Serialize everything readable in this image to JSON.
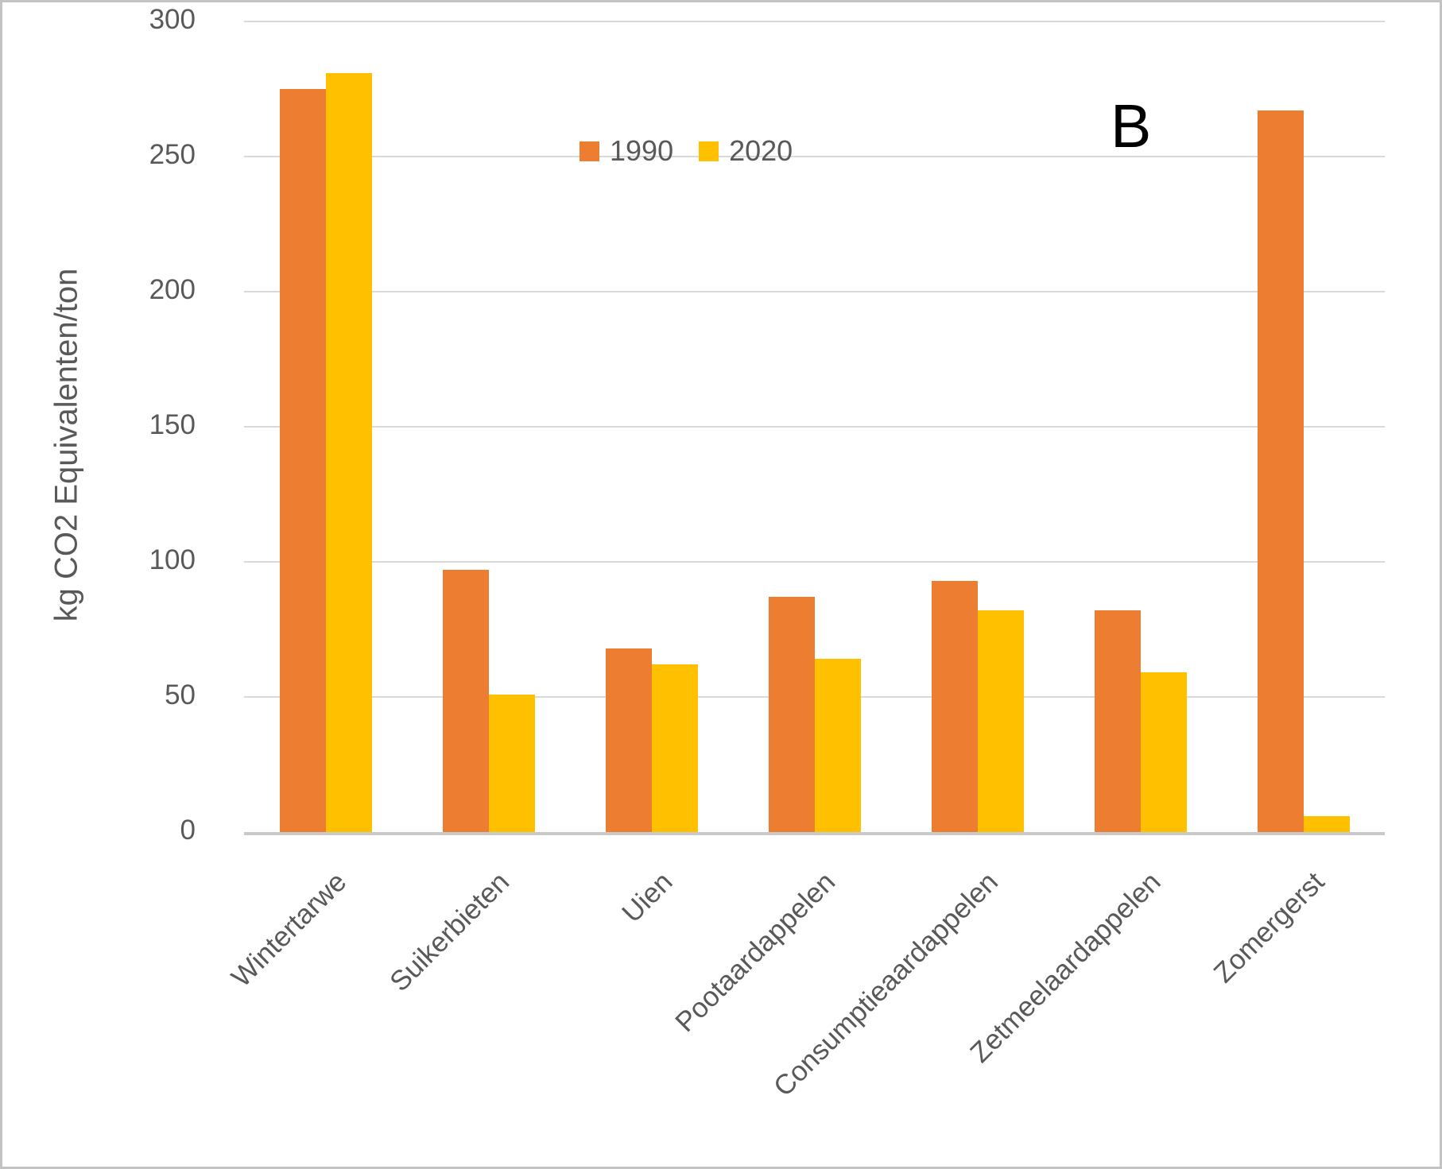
{
  "figure": {
    "panel_label": "B",
    "background": "#FFFFFF",
    "border_color": "#C3C3C3"
  },
  "chart_data": {
    "type": "bar",
    "title": "",
    "xlabel": "",
    "ylabel": "kg CO2 Equivalenten/ton",
    "categories": [
      "Wintertarwe",
      "Suikerbieten",
      "Uien",
      "Pootaardappelen",
      "Consumptieaardappelen",
      "Zetmeelaardappelen",
      "Zomergerst"
    ],
    "series": [
      {
        "name": "1990",
        "color": "#ED7D31",
        "values": [
          275,
          97,
          68,
          87,
          93,
          82,
          267
        ]
      },
      {
        "name": "2020",
        "color": "#FFC000",
        "values": [
          281,
          51,
          62,
          64,
          82,
          59,
          6
        ]
      }
    ],
    "y_axis": {
      "min": 0,
      "max": 300,
      "step": 50,
      "ticks": [
        0,
        50,
        100,
        150,
        200,
        250,
        300
      ]
    },
    "grid": true,
    "gridline_color": "#D9D9D9",
    "axis_line_color": "#C9C9C9",
    "text_color": "#595959",
    "legend_position": "top-center"
  }
}
